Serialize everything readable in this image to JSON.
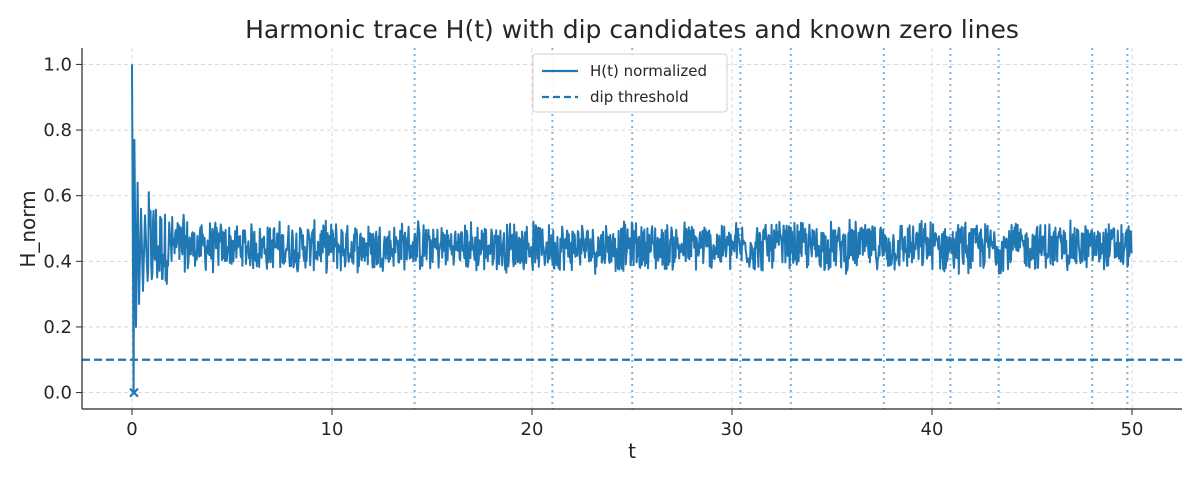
{
  "chart_data": {
    "type": "line",
    "title": "Harmonic trace H(t) with dip candidates and known zero lines",
    "xlabel": "t",
    "ylabel": "H_norm",
    "xlim": [
      -2.5,
      52.5
    ],
    "ylim": [
      -0.05,
      1.05
    ],
    "x_ticks": [
      0,
      10,
      20,
      30,
      40,
      50
    ],
    "y_ticks": [
      0.0,
      0.2,
      0.4,
      0.6,
      0.8,
      1.0
    ],
    "x_tick_labels": [
      "0",
      "10",
      "20",
      "30",
      "40",
      "50"
    ],
    "y_tick_labels": [
      "0.0",
      "0.2",
      "0.4",
      "0.6",
      "0.8",
      "1.0"
    ],
    "grid": true,
    "legend_position": "top-center",
    "series": [
      {
        "name": "H(t) normalized",
        "style": "solid",
        "color": "#1f77b4",
        "t_range": [
          0,
          50
        ],
        "start_value": 1.0,
        "steady_mean": 0.445,
        "steady_band": [
          0.36,
          0.53
        ],
        "initial_spikes": [
          {
            "x": 0.0,
            "y": 1.0
          },
          {
            "x": 0.08,
            "y": 0.0
          },
          {
            "x": 0.12,
            "y": 0.77
          },
          {
            "x": 0.2,
            "y": 0.2
          },
          {
            "x": 0.28,
            "y": 0.64
          },
          {
            "x": 0.35,
            "y": 0.27
          },
          {
            "x": 0.45,
            "y": 0.56
          },
          {
            "x": 0.55,
            "y": 0.31
          },
          {
            "x": 0.65,
            "y": 0.54
          },
          {
            "x": 0.78,
            "y": 0.34
          }
        ]
      },
      {
        "name": "dip threshold",
        "style": "dashed",
        "color": "#1f77b4",
        "value": 0.1
      }
    ],
    "dip_candidates": [
      {
        "x": 0.1,
        "y": 0.0
      }
    ],
    "known_zero_lines": [
      14.13,
      21.02,
      25.01,
      30.42,
      32.94,
      37.59,
      40.92,
      43.33,
      48.01,
      49.77
    ],
    "zero_line_style": "dotted",
    "zero_line_color": "#7fb2dc",
    "line_color": "#1f77b4"
  }
}
